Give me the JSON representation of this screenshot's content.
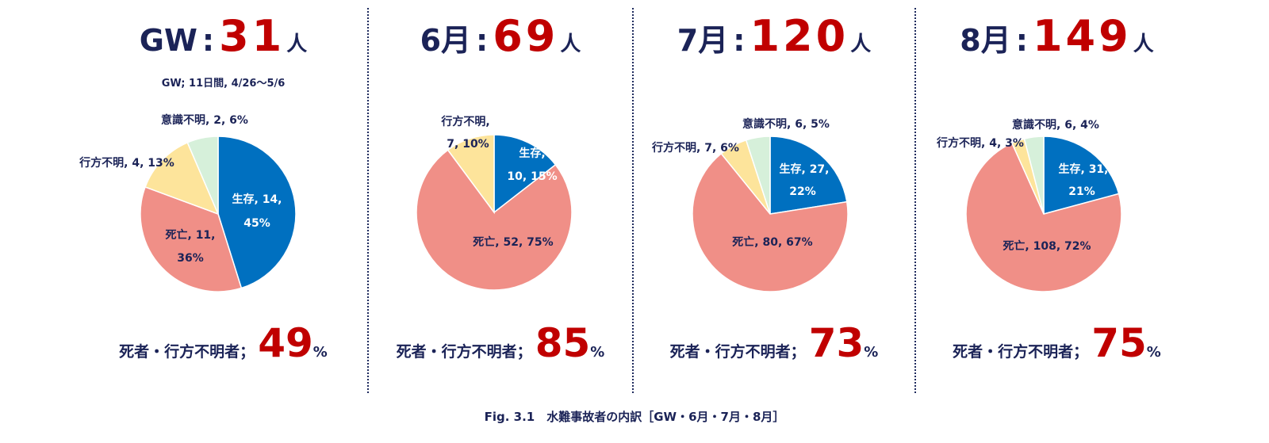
{
  "colors": {
    "survived": "#0070c0",
    "dead": "#f08f87",
    "missing": "#fde49b",
    "unconscious": "#d6f0da",
    "title_dark": "#1b2357",
    "accent_red": "#c00000"
  },
  "charts": [
    {
      "title_label": "GW",
      "title_colon": ":",
      "title_number": "31",
      "title_unit": "人",
      "note": "GW; 11日間, 4/26〜5/6",
      "summary_label": "死者・行方不明者；",
      "summary_value": "49",
      "summary_unit": "%",
      "slice_labels": [
        "生存, 14,",
        "45%",
        "死亡, 11,",
        "36%",
        "行方不明, 4, 13%",
        "意識不明, 2, 6%"
      ]
    },
    {
      "title_label": "6月",
      "title_colon": ":",
      "title_number": "69",
      "title_unit": "人",
      "note": "",
      "summary_label": "死者・行方不明者；",
      "summary_value": "85",
      "summary_unit": "%",
      "slice_labels": [
        "生存,",
        "10, 15%",
        "死亡, 52, 75%",
        "行方不明,",
        "7, 10%"
      ]
    },
    {
      "title_label": "7月",
      "title_colon": ":",
      "title_number": "120",
      "title_unit": "人",
      "note": "",
      "summary_label": "死者・行方不明者；",
      "summary_value": "73",
      "summary_unit": "%",
      "slice_labels": [
        "生存, 27,",
        "22%",
        "死亡, 80, 67%",
        "行方不明, 7, 6%",
        "意識不明, 6, 5%"
      ]
    },
    {
      "title_label": "8月",
      "title_colon": ":",
      "title_number": "149",
      "title_unit": "人",
      "note": "",
      "summary_label": "死者・行方不明者；",
      "summary_value": "75",
      "summary_unit": "%",
      "slice_labels": [
        "生存, 31,",
        "21%",
        "死亡, 108, 72%",
        "行方不明, 4, 3%",
        "意識不明, 6, 4%"
      ]
    }
  ],
  "chart_data": [
    {
      "type": "pie",
      "title": "GW:31人",
      "categories": [
        "生存",
        "死亡",
        "行方不明",
        "意識不明"
      ],
      "values": [
        14,
        11,
        4,
        2
      ],
      "percentages": [
        45,
        36,
        13,
        6
      ]
    },
    {
      "type": "pie",
      "title": "6月:69人",
      "categories": [
        "生存",
        "死亡",
        "行方不明"
      ],
      "values": [
        10,
        52,
        7
      ],
      "percentages": [
        15,
        75,
        10
      ]
    },
    {
      "type": "pie",
      "title": "7月:120人",
      "categories": [
        "生存",
        "死亡",
        "行方不明",
        "意識不明"
      ],
      "values": [
        27,
        80,
        7,
        6
      ],
      "percentages": [
        22,
        67,
        6,
        5
      ]
    },
    {
      "type": "pie",
      "title": "8月:149人",
      "categories": [
        "生存",
        "死亡",
        "行方不明",
        "意識不明"
      ],
      "values": [
        31,
        108,
        4,
        6
      ],
      "percentages": [
        21,
        72,
        3,
        4
      ]
    }
  ],
  "caption": "Fig. 3.1　水難事故者の内訳［GW・6月・7月・8月］"
}
